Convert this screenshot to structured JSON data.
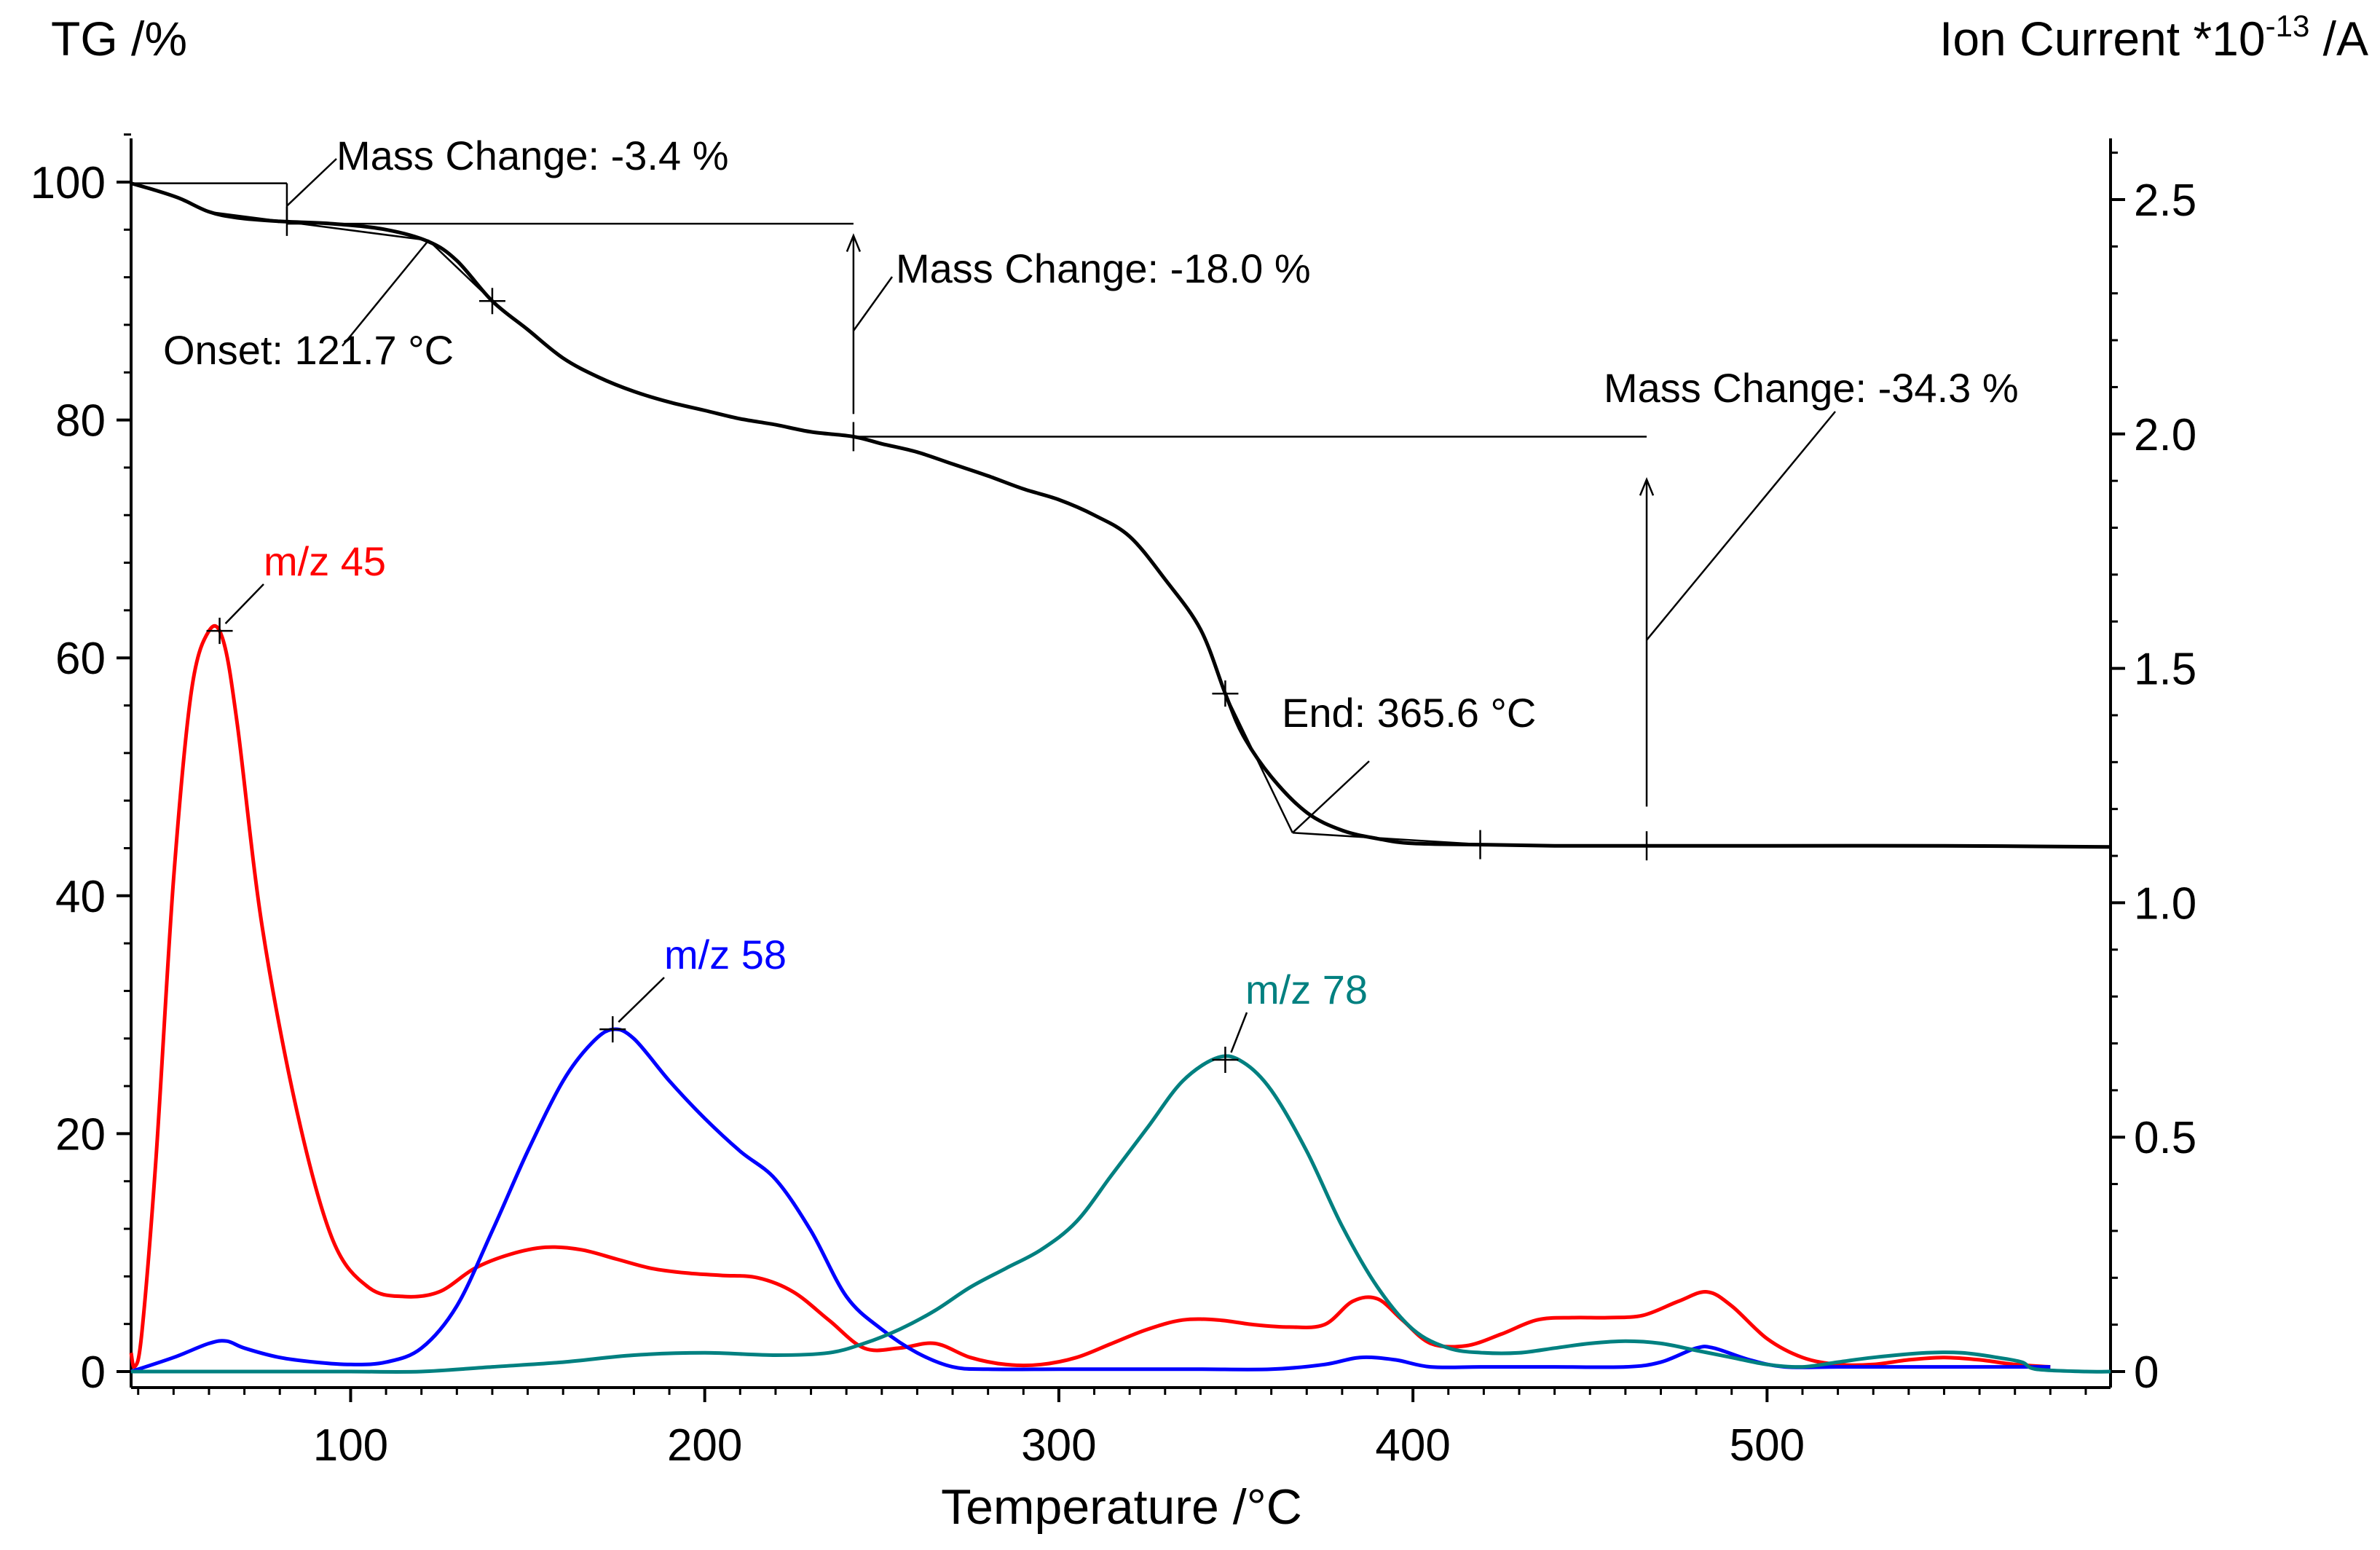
{
  "chart_data": {
    "type": "line",
    "y_left_label": "TG /%",
    "y_right_label_prefix": "Ion Current *10",
    "y_right_label_exponent": "-13",
    "y_right_label_suffix": " /A",
    "xlabel": "Temperature /°C",
    "xlim": [
      38,
      597
    ],
    "ylim_left": [
      0,
      100
    ],
    "ylim_right": [
      0,
      2.5
    ],
    "x_ticks": [
      "100",
      "200",
      "300",
      "400",
      "500"
    ],
    "y_left_ticks": [
      "0",
      "20",
      "40",
      "60",
      "80",
      "100"
    ],
    "y_right_ticks": [
      "0",
      "0.5",
      "1.0",
      "1.5",
      "2.0",
      "2.5"
    ],
    "grid": false,
    "colors": {
      "tg": "#000000",
      "mz45": "#ff0000",
      "mz58": "#0000ff",
      "mz78": "#008080",
      "axis": "#000000"
    },
    "series": [
      {
        "name": "TG",
        "axis": "left",
        "color": "#000000",
        "points": [
          [
            38,
            99.9
          ],
          [
            45,
            99.3
          ],
          [
            52,
            98.6
          ],
          [
            60,
            97.5
          ],
          [
            68,
            97.0
          ],
          [
            80,
            96.7
          ],
          [
            95,
            96.5
          ],
          [
            110,
            96.0
          ],
          [
            122,
            95.0
          ],
          [
            130,
            93.4
          ],
          [
            140,
            90.0
          ],
          [
            150,
            87.6
          ],
          [
            160,
            85.2
          ],
          [
            170,
            83.6
          ],
          [
            180,
            82.4
          ],
          [
            190,
            81.5
          ],
          [
            200,
            80.8
          ],
          [
            210,
            80.1
          ],
          [
            220,
            79.6
          ],
          [
            230,
            79.0
          ],
          [
            242,
            78.6
          ],
          [
            250,
            78.0
          ],
          [
            260,
            77.3
          ],
          [
            270,
            76.3
          ],
          [
            280,
            75.3
          ],
          [
            290,
            74.2
          ],
          [
            300,
            73.3
          ],
          [
            310,
            72.0
          ],
          [
            320,
            70.2
          ],
          [
            330,
            66.6
          ],
          [
            340,
            62.4
          ],
          [
            347,
            57.0
          ],
          [
            352,
            53.5
          ],
          [
            360,
            50.0
          ],
          [
            370,
            47.0
          ],
          [
            380,
            45.5
          ],
          [
            390,
            44.8
          ],
          [
            400,
            44.4
          ],
          [
            419,
            44.3
          ],
          [
            440,
            44.2
          ],
          [
            466,
            44.2
          ],
          [
            500,
            44.2
          ],
          [
            550,
            44.2
          ],
          [
            597,
            44.1
          ]
        ]
      },
      {
        "name": "m/z 45",
        "axis": "right",
        "color": "#ff0000",
        "points": [
          [
            38,
            0.04
          ],
          [
            39,
            0.01
          ],
          [
            41,
            0.08
          ],
          [
            45,
            0.45
          ],
          [
            50,
            1.05
          ],
          [
            55,
            1.45
          ],
          [
            60,
            1.58
          ],
          [
            64,
            1.56
          ],
          [
            68,
            1.38
          ],
          [
            75,
            0.95
          ],
          [
            85,
            0.55
          ],
          [
            95,
            0.28
          ],
          [
            105,
            0.18
          ],
          [
            115,
            0.16
          ],
          [
            125,
            0.17
          ],
          [
            135,
            0.22
          ],
          [
            145,
            0.25
          ],
          [
            155,
            0.265
          ],
          [
            165,
            0.26
          ],
          [
            175,
            0.24
          ],
          [
            185,
            0.22
          ],
          [
            195,
            0.21
          ],
          [
            205,
            0.205
          ],
          [
            215,
            0.2
          ],
          [
            225,
            0.17
          ],
          [
            235,
            0.11
          ],
          [
            245,
            0.05
          ],
          [
            255,
            0.05
          ],
          [
            265,
            0.06
          ],
          [
            275,
            0.03
          ],
          [
            285,
            0.015
          ],
          [
            295,
            0.015
          ],
          [
            305,
            0.03
          ],
          [
            315,
            0.06
          ],
          [
            325,
            0.09
          ],
          [
            335,
            0.11
          ],
          [
            345,
            0.11
          ],
          [
            355,
            0.1
          ],
          [
            365,
            0.095
          ],
          [
            375,
            0.1
          ],
          [
            383,
            0.15
          ],
          [
            390,
            0.155
          ],
          [
            397,
            0.11
          ],
          [
            405,
            0.06
          ],
          [
            415,
            0.055
          ],
          [
            425,
            0.08
          ],
          [
            435,
            0.11
          ],
          [
            445,
            0.115
          ],
          [
            455,
            0.115
          ],
          [
            465,
            0.12
          ],
          [
            475,
            0.15
          ],
          [
            483,
            0.17
          ],
          [
            490,
            0.14
          ],
          [
            500,
            0.07
          ],
          [
            510,
            0.03
          ],
          [
            520,
            0.015
          ],
          [
            530,
            0.015
          ],
          [
            540,
            0.025
          ],
          [
            550,
            0.03
          ],
          [
            560,
            0.025
          ],
          [
            570,
            0.015
          ],
          [
            580,
            0.01
          ]
        ]
      },
      {
        "name": "m/z 58",
        "axis": "right",
        "color": "#0000ff",
        "points": [
          [
            38,
            0.0
          ],
          [
            50,
            0.03
          ],
          [
            60,
            0.06
          ],
          [
            65,
            0.065
          ],
          [
            70,
            0.05
          ],
          [
            80,
            0.03
          ],
          [
            90,
            0.02
          ],
          [
            100,
            0.015
          ],
          [
            110,
            0.02
          ],
          [
            120,
            0.05
          ],
          [
            130,
            0.14
          ],
          [
            140,
            0.3
          ],
          [
            150,
            0.47
          ],
          [
            160,
            0.62
          ],
          [
            168,
            0.7
          ],
          [
            174,
            0.73
          ],
          [
            180,
            0.71
          ],
          [
            190,
            0.62
          ],
          [
            200,
            0.54
          ],
          [
            210,
            0.47
          ],
          [
            220,
            0.41
          ],
          [
            230,
            0.3
          ],
          [
            240,
            0.16
          ],
          [
            250,
            0.09
          ],
          [
            260,
            0.04
          ],
          [
            270,
            0.01
          ],
          [
            280,
            0.005
          ],
          [
            300,
            0.005
          ],
          [
            320,
            0.005
          ],
          [
            340,
            0.005
          ],
          [
            360,
            0.005
          ],
          [
            375,
            0.015
          ],
          [
            385,
            0.03
          ],
          [
            395,
            0.025
          ],
          [
            405,
            0.01
          ],
          [
            420,
            0.01
          ],
          [
            440,
            0.01
          ],
          [
            460,
            0.01
          ],
          [
            470,
            0.02
          ],
          [
            480,
            0.05
          ],
          [
            485,
            0.05
          ],
          [
            495,
            0.025
          ],
          [
            505,
            0.01
          ],
          [
            520,
            0.01
          ],
          [
            540,
            0.01
          ],
          [
            560,
            0.01
          ],
          [
            580,
            0.01
          ]
        ]
      },
      {
        "name": "m/z 78",
        "axis": "right",
        "color": "#008080",
        "points": [
          [
            38,
            0.0
          ],
          [
            60,
            0.0
          ],
          [
            80,
            0.0
          ],
          [
            100,
            0.0
          ],
          [
            120,
            0.0
          ],
          [
            140,
            0.01
          ],
          [
            160,
            0.02
          ],
          [
            180,
            0.035
          ],
          [
            200,
            0.04
          ],
          [
            220,
            0.035
          ],
          [
            235,
            0.04
          ],
          [
            245,
            0.06
          ],
          [
            255,
            0.09
          ],
          [
            265,
            0.13
          ],
          [
            275,
            0.18
          ],
          [
            285,
            0.22
          ],
          [
            295,
            0.26
          ],
          [
            305,
            0.32
          ],
          [
            315,
            0.42
          ],
          [
            325,
            0.52
          ],
          [
            335,
            0.62
          ],
          [
            345,
            0.67
          ],
          [
            352,
            0.66
          ],
          [
            360,
            0.6
          ],
          [
            370,
            0.47
          ],
          [
            380,
            0.31
          ],
          [
            390,
            0.18
          ],
          [
            400,
            0.09
          ],
          [
            410,
            0.05
          ],
          [
            420,
            0.04
          ],
          [
            430,
            0.04
          ],
          [
            440,
            0.05
          ],
          [
            450,
            0.06
          ],
          [
            460,
            0.065
          ],
          [
            470,
            0.06
          ],
          [
            480,
            0.045
          ],
          [
            490,
            0.03
          ],
          [
            500,
            0.015
          ],
          [
            510,
            0.01
          ],
          [
            520,
            0.02
          ],
          [
            530,
            0.03
          ],
          [
            545,
            0.04
          ],
          [
            555,
            0.04
          ],
          [
            565,
            0.03
          ],
          [
            572,
            0.02
          ],
          [
            576,
            0.005
          ],
          [
            590,
            0.0
          ],
          [
            597,
            0.0
          ]
        ]
      }
    ],
    "annotations": {
      "mass_change_1": "Mass Change: -3.4 %",
      "mass_change_2": "Mass Change: -18.0 %",
      "mass_change_3": "Mass Change: -34.3 %",
      "onset": "Onset: 121.7 °C",
      "end": "End: 365.6 °C",
      "label_45": "m/z 45",
      "label_58": "m/z 58",
      "label_78": "m/z 78"
    }
  }
}
